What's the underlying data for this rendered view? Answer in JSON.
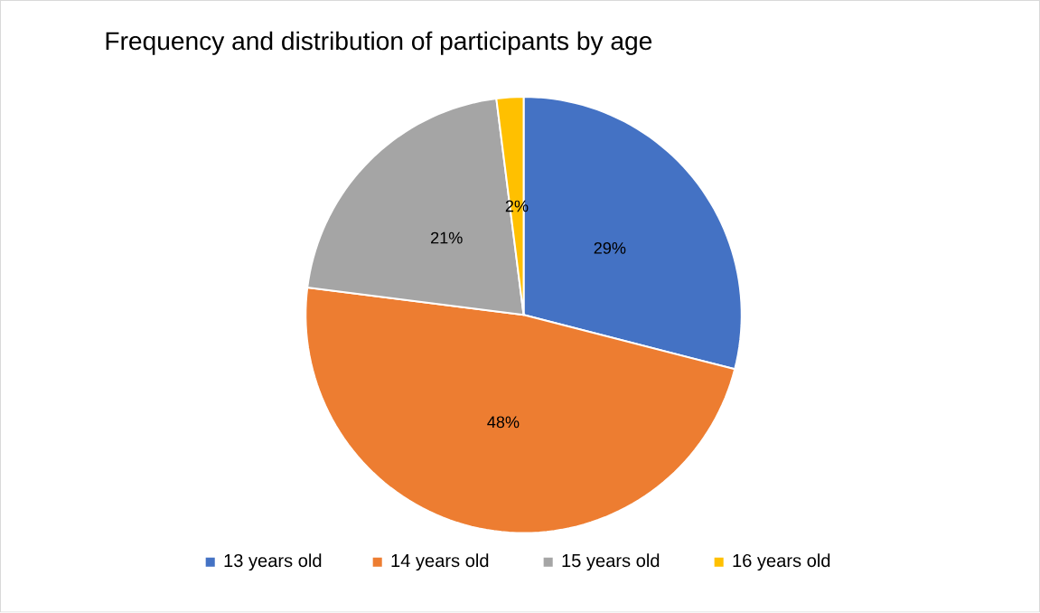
{
  "chart_data": {
    "type": "pie",
    "title": "Frequency and distribution of participants by age",
    "categories": [
      "13 years old",
      "14 years old",
      "15 years old",
      "16 years old"
    ],
    "values": [
      29,
      48,
      21,
      2
    ],
    "colors": [
      "#4472c4",
      "#ed7d31",
      "#a5a5a5",
      "#ffc000"
    ],
    "value_labels": [
      "29%",
      "48%",
      "21%",
      "2%"
    ],
    "legend": "bottom"
  }
}
